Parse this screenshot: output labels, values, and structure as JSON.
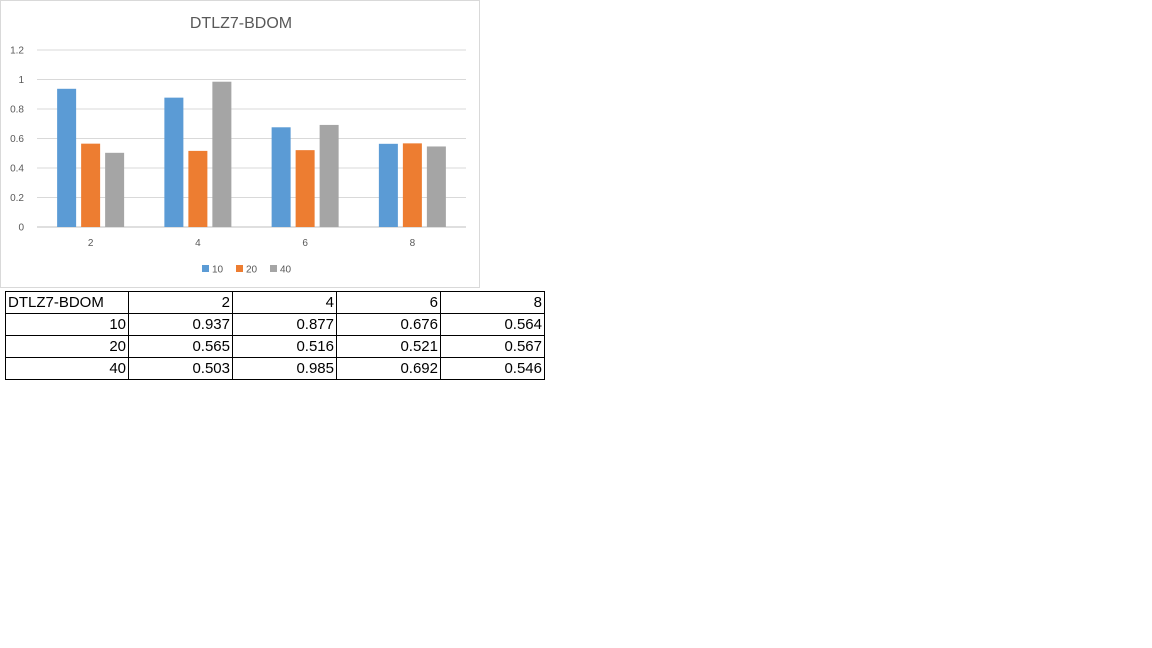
{
  "chart_data": {
    "type": "bar",
    "title": "DTLZ7-BDOM",
    "categories": [
      "2",
      "4",
      "6",
      "8"
    ],
    "series": [
      {
        "name": "10",
        "color": "#5b9bd5",
        "values": [
          0.937,
          0.877,
          0.676,
          0.564
        ]
      },
      {
        "name": "20",
        "color": "#ed7d31",
        "values": [
          0.565,
          0.516,
          0.521,
          0.567
        ]
      },
      {
        "name": "40",
        "color": "#a5a5a5",
        "values": [
          0.503,
          0.985,
          0.692,
          0.546
        ]
      }
    ],
    "ylim": [
      0,
      1.2
    ],
    "yticks": [
      "0",
      "0.2",
      "0.4",
      "0.6",
      "0.8",
      "1",
      "1.2"
    ],
    "grid": true,
    "legend": "bottom"
  },
  "table": {
    "header": [
      "DTLZ7-BDOM",
      "2",
      "4",
      "6",
      "8"
    ],
    "rows": [
      [
        "10",
        "0.937",
        "0.877",
        "0.676",
        "0.564"
      ],
      [
        "20",
        "0.565",
        "0.516",
        "0.521",
        "0.567"
      ],
      [
        "40",
        "0.503",
        "0.985",
        "0.692",
        "0.546"
      ]
    ]
  }
}
